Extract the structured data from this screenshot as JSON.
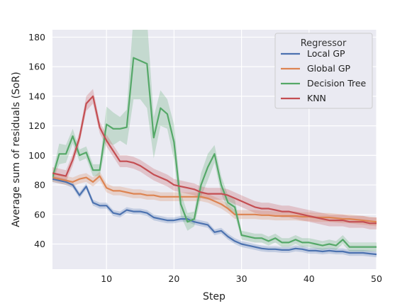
{
  "chart_data": {
    "type": "line",
    "xlabel": "Step",
    "ylabel": "Average sum of residuals (SoR)",
    "xlim": [
      2,
      50
    ],
    "ylim": [
      23,
      185
    ],
    "x_ticks": [
      10,
      20,
      30,
      40,
      50
    ],
    "y_ticks": [
      40,
      60,
      80,
      100,
      120,
      140,
      160,
      180
    ],
    "grid": true,
    "legend_title": "Regressor",
    "legend_position": "top-right",
    "x": [
      2,
      3,
      4,
      5,
      6,
      7,
      8,
      9,
      10,
      11,
      12,
      13,
      14,
      15,
      16,
      17,
      18,
      19,
      20,
      21,
      22,
      23,
      24,
      25,
      26,
      27,
      28,
      29,
      30,
      31,
      32,
      33,
      34,
      35,
      36,
      37,
      38,
      39,
      40,
      41,
      42,
      43,
      44,
      45,
      46,
      47,
      48,
      49,
      50
    ],
    "series": [
      {
        "name": "Local GP",
        "color": "#4c72b0",
        "values": [
          84,
          83,
          82,
          80,
          73,
          79,
          68,
          66,
          66,
          61,
          60,
          63,
          62,
          62,
          61,
          58,
          57,
          56,
          56,
          57,
          57,
          55,
          54,
          53,
          48,
          49,
          45,
          42,
          40,
          39,
          38,
          37,
          36.5,
          36.5,
          36,
          36,
          37,
          36.5,
          35.5,
          35.5,
          35,
          35.5,
          35,
          35,
          34,
          34,
          34,
          33.5,
          33
        ],
        "band": [
          2,
          2,
          2,
          2,
          2,
          2,
          2,
          2,
          2,
          2,
          2,
          2,
          2,
          2,
          2,
          2,
          2,
          2,
          2,
          2,
          2,
          2,
          2,
          2,
          2,
          2,
          2,
          2,
          2,
          2,
          2,
          2,
          2,
          2,
          2,
          2,
          2,
          2,
          2,
          2,
          2,
          2,
          2,
          2,
          2,
          2,
          2,
          2,
          2
        ]
      },
      {
        "name": "Global GP",
        "color": "#dd8452",
        "values": [
          85,
          84,
          83,
          82,
          84,
          85,
          82,
          86,
          78,
          76,
          76,
          75,
          74,
          74,
          73,
          73,
          72,
          72,
          72,
          72,
          72,
          72,
          72,
          71,
          69,
          67,
          64,
          60,
          60,
          60,
          60,
          59.5,
          59.5,
          59,
          59,
          59,
          59,
          58.5,
          58.5,
          58,
          58,
          58,
          57.5,
          57,
          57,
          56.5,
          56,
          55.5,
          55
        ],
        "band": [
          3,
          3,
          3,
          3,
          3,
          3,
          3,
          3,
          3,
          3,
          3,
          3,
          3,
          3,
          3,
          3,
          3,
          3,
          3,
          3,
          3,
          3,
          3,
          3,
          3,
          3,
          3,
          3,
          3,
          3,
          3,
          3,
          3,
          3,
          3,
          3,
          3,
          3,
          3,
          3,
          3,
          3,
          3,
          3,
          3,
          3,
          3,
          3,
          3
        ]
      },
      {
        "name": "Decision Tree",
        "color": "#55a868",
        "values": [
          85,
          101,
          101,
          113,
          100,
          102,
          90,
          90,
          121,
          118,
          118,
          119,
          166,
          164,
          162,
          112,
          132,
          128,
          109,
          67,
          55,
          57,
          80,
          92,
          101,
          80,
          68,
          65,
          46,
          45,
          44,
          44,
          42,
          44,
          41,
          41,
          43,
          41,
          41,
          40,
          39,
          40,
          39,
          43,
          38,
          38,
          38,
          38,
          38
        ],
        "band": [
          3,
          7,
          6,
          5,
          4,
          4,
          4,
          4,
          12,
          11,
          8,
          12,
          28,
          26,
          30,
          14,
          12,
          10,
          12,
          8,
          6,
          5,
          8,
          9,
          6,
          6,
          5,
          5,
          3,
          3,
          3,
          3,
          3,
          3,
          3,
          3,
          3,
          3,
          3,
          3,
          3,
          3,
          3,
          3,
          3,
          3,
          3,
          3,
          3
        ]
      },
      {
        "name": "KNN",
        "color": "#c44e52",
        "values": [
          88,
          87,
          86,
          97,
          112,
          135,
          140,
          119,
          110,
          103,
          96,
          96,
          95,
          93,
          90,
          87,
          85,
          83,
          80,
          79,
          78,
          77,
          75,
          74,
          74,
          74,
          73,
          71,
          69,
          67,
          65,
          64,
          64,
          63,
          62,
          62,
          61,
          60,
          59,
          58,
          57,
          56,
          56,
          56,
          55,
          55,
          55,
          54,
          54
        ],
        "band": [
          4,
          4,
          4,
          4,
          4,
          5,
          5,
          4,
          4,
          4,
          4,
          4,
          4,
          4,
          4,
          4,
          4,
          4,
          4,
          4,
          4,
          4,
          4,
          4,
          4,
          4,
          4,
          4,
          4,
          4,
          4,
          4,
          4,
          4,
          4,
          4,
          4,
          4,
          4,
          4,
          4,
          4,
          4,
          4,
          4,
          4,
          4,
          4,
          4
        ]
      }
    ]
  }
}
